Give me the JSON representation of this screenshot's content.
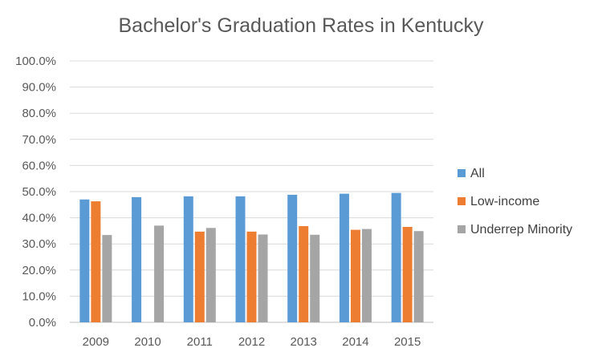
{
  "chart_data": {
    "type": "bar",
    "title": "Bachelor's Graduation Rates in Kentucky",
    "xlabel": "",
    "ylabel": "",
    "categories": [
      "2009",
      "2010",
      "2011",
      "2012",
      "2013",
      "2014",
      "2015"
    ],
    "ylim": [
      0,
      100
    ],
    "y_ticks": [
      "0.0%",
      "10.0%",
      "20.0%",
      "30.0%",
      "40.0%",
      "50.0%",
      "60.0%",
      "70.0%",
      "80.0%",
      "90.0%",
      "100.0%"
    ],
    "grid": true,
    "legend_position": "right",
    "series": [
      {
        "name": "All",
        "color": "#5B9BD5",
        "values": [
          47.0,
          47.9,
          48.2,
          48.2,
          48.8,
          49.2,
          49.5
        ]
      },
      {
        "name": "Low-income",
        "color": "#ED7D31",
        "values": [
          46.3,
          null,
          34.7,
          34.7,
          36.8,
          35.4,
          36.5
        ]
      },
      {
        "name": "Underrep Minority",
        "color": "#A5A5A5",
        "values": [
          33.4,
          37.0,
          36.1,
          33.6,
          33.5,
          35.7,
          34.9
        ]
      }
    ]
  }
}
